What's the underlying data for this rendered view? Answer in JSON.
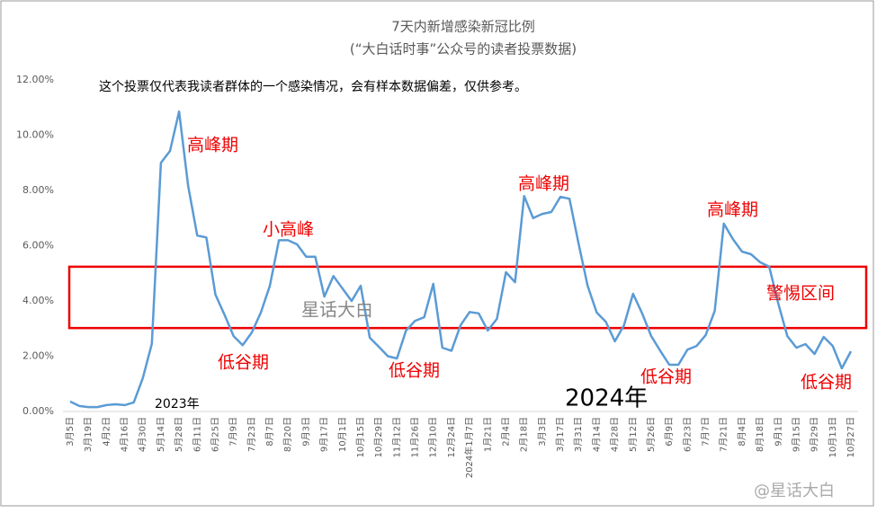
{
  "chart_data": {
    "type": "line",
    "title": "7天内新增感染新冠比例",
    "subtitle": "(“大白话时事”公众号的读者投票数据)",
    "note": "这个投票仅代表我读者群体的一个感染情况，会有样本数据偏差，仅供参考。",
    "categories": [
      "3月5日",
      null,
      "3月19日",
      null,
      "4月2日",
      null,
      "4月16日",
      null,
      "4月30日",
      null,
      "5月14日",
      null,
      "5月28日",
      null,
      "6月11日",
      null,
      "6月25日",
      null,
      "7月9日",
      null,
      "7月23日",
      null,
      "8月7日",
      null,
      "8月20日",
      null,
      "9月3日",
      null,
      "9月17日",
      null,
      "10月1日",
      null,
      "10月15日",
      null,
      "10月29日",
      null,
      "11月12日",
      null,
      "11月26日",
      null,
      "12月10日",
      null,
      "12月24日",
      null,
      "2024年1月7日",
      null,
      "1月21日",
      null,
      "2月4日",
      null,
      "2月18日",
      null,
      "3月3日",
      null,
      "3月17日",
      null,
      "3月31日",
      null,
      "4月14日",
      null,
      "4月28日",
      null,
      "5月12日",
      null,
      "5月26日",
      null,
      "6月9日",
      null,
      "6月23日",
      null,
      "7月7日",
      null,
      "7月21日",
      null,
      "8月4日",
      null,
      "8月18日",
      null,
      "9月1日",
      null,
      "9月15日",
      null,
      "9月29日",
      null,
      "10月13日",
      null,
      "10月27日"
    ],
    "series": [
      {
        "name": "比例",
        "color": "#5b9bd5",
        "values": [
          0.36,
          0.2,
          0.16,
          0.16,
          0.23,
          0.26,
          0.23,
          0.33,
          1.2,
          2.45,
          9.0,
          9.43,
          10.86,
          8.16,
          6.37,
          6.3,
          4.23,
          3.5,
          2.73,
          2.4,
          2.86,
          3.58,
          4.55,
          6.2,
          6.2,
          6.05,
          5.6,
          5.6,
          4.16,
          4.9,
          4.45,
          4.0,
          4.55,
          2.67,
          2.34,
          2.0,
          1.92,
          2.93,
          3.28,
          3.41,
          4.62,
          2.31,
          2.2,
          3.12,
          3.6,
          3.55,
          2.93,
          3.35,
          5.04,
          4.68,
          7.8,
          7.0,
          7.15,
          7.22,
          7.77,
          7.7,
          6.08,
          4.55,
          3.58,
          3.25,
          2.54,
          3.12,
          4.26,
          3.55,
          2.73,
          2.2,
          1.69,
          1.69,
          2.24,
          2.37,
          2.76,
          3.64,
          6.8,
          6.24,
          5.79,
          5.69,
          5.4,
          5.24,
          3.9,
          2.73,
          2.31,
          2.44,
          2.08,
          2.7,
          2.37,
          1.56,
          2.18
        ]
      }
    ],
    "ylim": [
      0,
      12
    ],
    "yticks": [
      {
        "value": 0,
        "label": "0.00%"
      },
      {
        "value": 2,
        "label": "2.00%"
      },
      {
        "value": 4,
        "label": "4.00%"
      },
      {
        "value": 6,
        "label": "6.00%"
      },
      {
        "value": 8,
        "label": "8.00%"
      },
      {
        "value": 10,
        "label": "10.00%"
      },
      {
        "value": 12,
        "label": "12.00%"
      }
    ],
    "alert_range": [
      3.02,
      5.24
    ],
    "annotations": [
      "2023年",
      "2024年",
      "高峰期",
      "小高峰",
      "低谷期",
      "低谷期",
      "高峰期",
      "低谷期",
      "高峰期",
      "警惕区间",
      "低谷期",
      "星话大白",
      "@星话大白"
    ]
  }
}
